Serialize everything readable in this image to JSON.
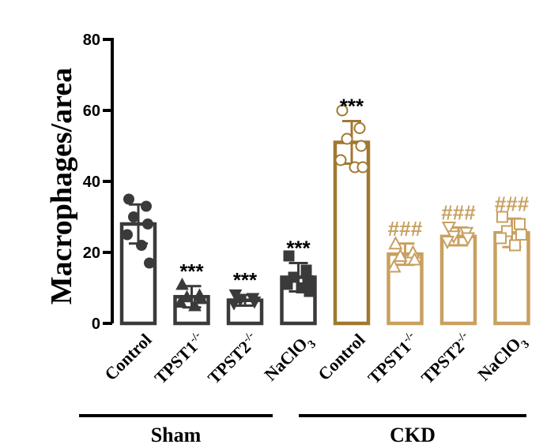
{
  "chart_data": {
    "type": "bar",
    "ylabel": "Macrophages/area",
    "ylim": [
      0,
      80
    ],
    "yticks": [
      0,
      20,
      40,
      60,
      80
    ],
    "grid": false,
    "categories": [
      {
        "base": "Control",
        "sup": "",
        "sub": "",
        "group": "Sham",
        "color": "#3a3a3a",
        "value": 28,
        "sd": 5.5,
        "marker": "circle-filled",
        "annotation": "",
        "points": [
          35,
          33,
          30,
          28,
          25,
          22,
          17
        ]
      },
      {
        "base": "TPST1",
        "sup": "-/-",
        "sub": "",
        "group": "Sham",
        "color": "#3a3a3a",
        "value": 7.5,
        "sd": 3,
        "marker": "triangle-up-filled",
        "annotation": "***",
        "points": [
          11,
          8,
          7.5,
          7,
          6,
          5
        ]
      },
      {
        "base": "TPST2",
        "sup": "-/-",
        "sub": "",
        "group": "Sham",
        "color": "#3a3a3a",
        "value": 6.5,
        "sd": 1.5,
        "marker": "triangle-down-filled",
        "annotation": "***",
        "points": [
          8,
          7,
          6.5,
          6,
          5.5
        ]
      },
      {
        "base": "NaClO",
        "sup": "",
        "sub": "3",
        "group": "Sham",
        "color": "#3a3a3a",
        "value": 13,
        "sd": 4,
        "marker": "square-filled",
        "annotation": "***",
        "points": [
          19,
          15,
          13,
          12,
          11,
          10,
          9
        ]
      },
      {
        "base": "Control",
        "sup": "",
        "sub": "",
        "group": "CKD",
        "color": "#a07830",
        "value": 51,
        "sd": 6,
        "marker": "circle-open",
        "annotation": "***",
        "points": [
          60,
          55,
          52,
          50,
          46,
          44,
          44
        ]
      },
      {
        "base": "TPST1",
        "sup": "-/-",
        "sub": "",
        "group": "CKD",
        "color": "#c8a060",
        "value": 19.5,
        "sd": 3,
        "marker": "triangle-up-open",
        "annotation": "###",
        "points": [
          22.5,
          20,
          19,
          18,
          16
        ]
      },
      {
        "base": "TPST2",
        "sup": "-/-",
        "sub": "",
        "group": "CKD",
        "color": "#c8a060",
        "value": 24.5,
        "sd": 2.5,
        "marker": "triangle-down-open",
        "annotation": "###",
        "points": [
          27,
          25.5,
          24.5,
          24,
          23
        ]
      },
      {
        "base": "NaClO",
        "sup": "",
        "sub": "3",
        "group": "CKD",
        "color": "#c8a060",
        "value": 25.5,
        "sd": 4,
        "marker": "square-open",
        "annotation": "###",
        "points": [
          30,
          28,
          26,
          25,
          24,
          22
        ]
      }
    ],
    "groups": [
      {
        "label": "Sham",
        "color": "#000000"
      },
      {
        "label": "CKD",
        "color": "#000000"
      }
    ],
    "annotation_colors": {
      "***": "#000000"
    }
  }
}
